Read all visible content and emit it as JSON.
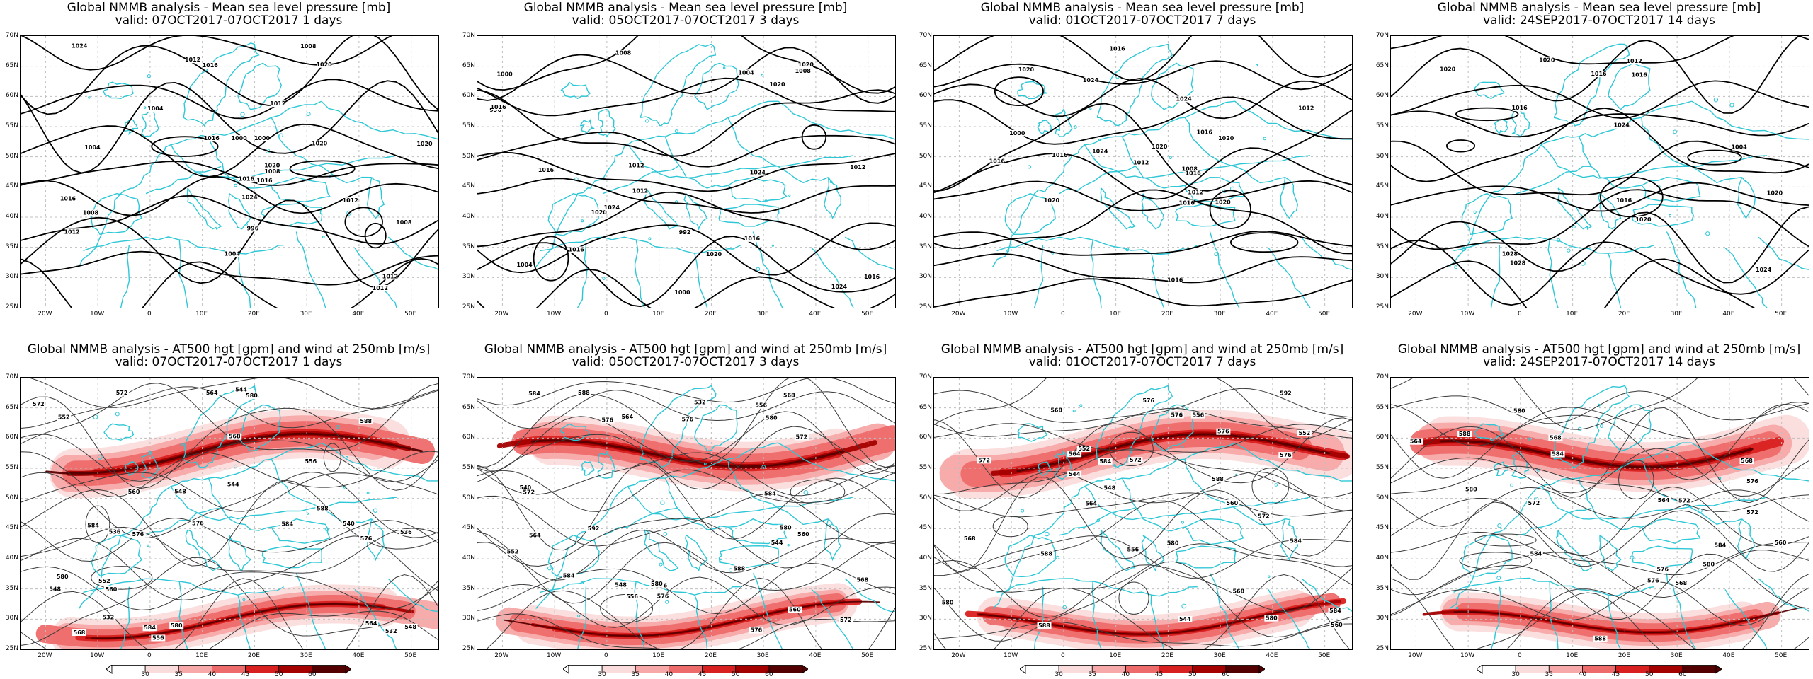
{
  "colors": {
    "coast": "#2ec7d6",
    "contour": "#000000",
    "contour_thin": "#3a3a3a",
    "grid": "#bfbfbf",
    "wind_1": "#fbdcdc",
    "wind_2": "#f7a8a8",
    "wind_3": "#ee6b6b",
    "wind_4": "#d92020",
    "wind_5": "#a40000",
    "wind_6": "#550000"
  },
  "axes": {
    "lat_labels": [
      "70N",
      "65N",
      "60N",
      "55N",
      "50N",
      "45N",
      "40N",
      "35N",
      "30N",
      "25N"
    ],
    "lon_labels": [
      "20W",
      "10W",
      "0",
      "10E",
      "20E",
      "30E",
      "40E",
      "50E"
    ]
  },
  "panels_top": [
    {
      "title1": "Global NMMB analysis - Mean sea level pressure [mb]",
      "title2": "valid: 07OCT2017-07OCT2017   1 days",
      "labels": [
        "1008",
        "1004",
        "1008",
        "1012",
        "1016",
        "1020",
        "1024",
        "1000",
        "1004",
        "1012",
        "1016",
        "1020",
        "1012",
        "1008",
        "1012",
        "1016",
        "1020",
        "996",
        "1000",
        "1004",
        "1016",
        "1012",
        "1020",
        "1024",
        "1016",
        "1008",
        "1012"
      ]
    },
    {
      "title1": "Global NMMB analysis - Mean sea level pressure [mb]",
      "title2": "valid: 05OCT2017-07OCT2017   3 days",
      "labels": [
        "1012",
        "1016",
        "1020",
        "1024",
        "1000",
        "1004",
        "1008",
        "1016",
        "1024",
        "1020",
        "992",
        "996",
        "1000",
        "1004",
        "1008",
        "1012",
        "1016",
        "1020",
        "1016",
        "1012",
        "1016",
        "1024",
        "1020"
      ]
    },
    {
      "title1": "Global NMMB analysis - Mean sea level pressure [mb]",
      "title2": "valid: 01OCT2017-07OCT2017   7 days",
      "labels": [
        "1008",
        "1012",
        "1016",
        "1020",
        "1024",
        "1000",
        "1016",
        "1012",
        "1016",
        "1020",
        "1020",
        "1016",
        "1020",
        "1024",
        "1012",
        "1016",
        "1016",
        "1016",
        "1020",
        "1024"
      ]
    },
    {
      "title1": "Global NMMB analysis - Mean sea level pressure [mb]",
      "title2": "valid: 24SEP2017-07OCT2017   14 days",
      "labels": [
        "1004",
        "1016",
        "1020",
        "1020",
        "1028",
        "1028",
        "1024",
        "1020",
        "1020",
        "1016",
        "1012",
        "1016",
        "1016",
        "1024"
      ]
    }
  ],
  "panels_bottom": [
    {
      "title1": "Global NMMB analysis - AT500 hgt [gpm] and wind at 250mb [m/s]",
      "title2": "valid: 07OCT2017-07OCT2017   1 days",
      "labels": [
        "548",
        "552",
        "556",
        "560",
        "564",
        "568",
        "572",
        "576",
        "580",
        "584",
        "532",
        "536",
        "540",
        "544",
        "548",
        "552",
        "556",
        "560",
        "564",
        "568",
        "572",
        "576",
        "580",
        "584",
        "588",
        "532",
        "536",
        "544",
        "548",
        "588",
        "584",
        "580",
        "576"
      ]
    },
    {
      "title1": "Global NMMB analysis - AT500 hgt [gpm] and wind at 250mb [m/s]",
      "title2": "valid: 05OCT2017-07OCT2017   3 days",
      "labels": [
        "556",
        "560",
        "564",
        "568",
        "572",
        "576",
        "580",
        "584",
        "532",
        "536",
        "540",
        "544",
        "548",
        "552",
        "556",
        "560",
        "564",
        "568",
        "572",
        "576",
        "592",
        "588",
        "588",
        "584",
        "580",
        "576",
        "572",
        "576",
        "580",
        "584"
      ]
    },
    {
      "title1": "Global NMMB analysis - AT500 hgt [gpm] and wind at 250mb [m/s]",
      "title2": "valid: 01OCT2017-07OCT2017   7 days",
      "labels": [
        "544",
        "548",
        "552",
        "556",
        "560",
        "564",
        "568",
        "572",
        "576",
        "580",
        "584",
        "588",
        "592",
        "544",
        "552",
        "556",
        "560",
        "564",
        "568",
        "572",
        "576",
        "580",
        "584",
        "588",
        "576",
        "572",
        "576",
        "580",
        "584",
        "588",
        "568"
      ]
    },
    {
      "title1": "Global NMMB analysis - AT500 hgt [gpm] and wind at 250mb [m/s]",
      "title2": "valid: 24SEP2017-07OCT2017   14 days",
      "labels": [
        "560",
        "564",
        "568",
        "572",
        "576",
        "580",
        "584",
        "588",
        "568",
        "572",
        "576",
        "580",
        "584",
        "588",
        "584",
        "580",
        "576",
        "572",
        "568",
        "564"
      ]
    }
  ],
  "colorbar_labels": [
    "30",
    "35",
    "40",
    "45",
    "50",
    "60"
  ]
}
